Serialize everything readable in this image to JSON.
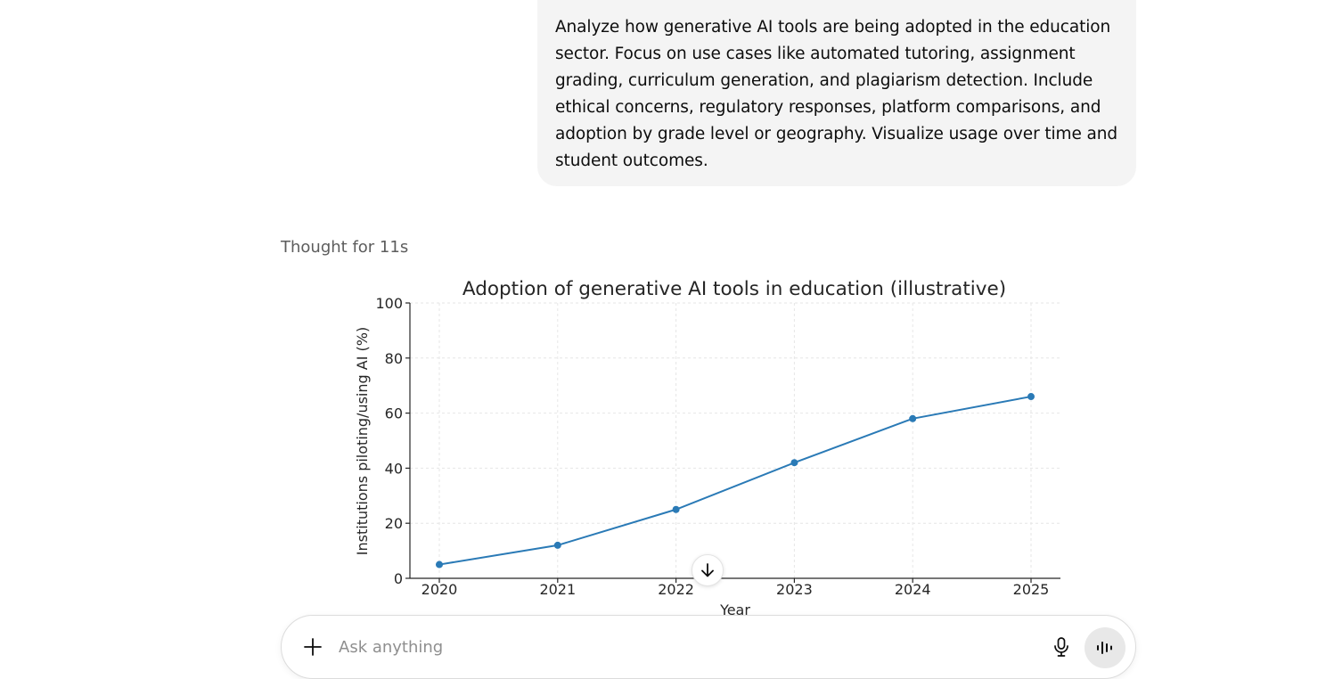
{
  "conversation": {
    "user_message": "Analyze how generative AI tools are being adopted in the education sector. Focus on use cases like automated tutoring, assignment grading, curriculum generation, and plagiarism detection. Include ethical concerns, regulatory responses, platform comparisons, and adoption by grade level or geography. Visualize usage over time and student outcomes.",
    "thought_label": "Thought for 11s"
  },
  "chart_data": {
    "type": "line",
    "title": "Adoption of generative AI tools in education (illustrative)",
    "xlabel": "Year",
    "ylabel": "Institutions piloting/using AI (%)",
    "x": [
      2020,
      2021,
      2022,
      2023,
      2024,
      2025
    ],
    "x_tick_labels": [
      "2020",
      "2021",
      "2022",
      "2023",
      "2024",
      "2025"
    ],
    "y_ticks": [
      0,
      20,
      40,
      60,
      80,
      100
    ],
    "y_tick_labels": [
      "0",
      "20",
      "40",
      "60",
      "80",
      "100"
    ],
    "ylim": [
      0,
      100
    ],
    "grid": true,
    "series": [
      {
        "values": [
          5,
          12,
          25,
          42,
          58,
          66
        ],
        "color": "#2a7ab6"
      }
    ]
  },
  "composer": {
    "placeholder": "Ask anything",
    "plus_icon": "plus-icon",
    "mic_icon": "microphone-icon",
    "voice_icon": "voice-mode-icon"
  },
  "scroll_button": {
    "icon": "arrow-down-icon"
  }
}
